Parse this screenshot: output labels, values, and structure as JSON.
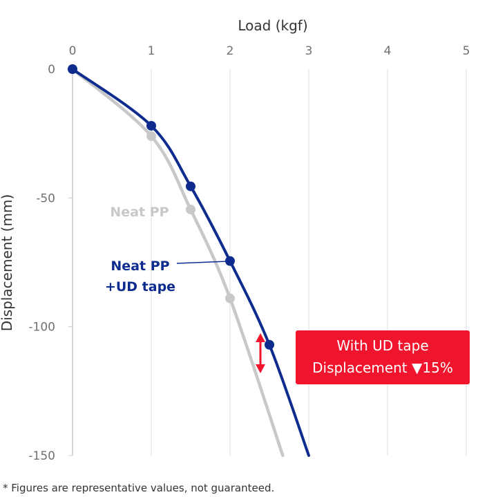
{
  "chart_data": {
    "type": "line",
    "title": "",
    "xlabel": "Load (kgf)",
    "ylabel": "Displacement (mm)",
    "xlim": [
      0,
      5
    ],
    "ylim": [
      -150,
      0
    ],
    "x_ticks": [
      "0",
      "1",
      "2",
      "3",
      "4",
      "5"
    ],
    "y_ticks": [
      "0",
      "-50",
      "-100",
      "-150"
    ],
    "grid": "vertical",
    "series": [
      {
        "name": "Neat PP",
        "color": "#c8c8c8",
        "points": [
          [
            0,
            0
          ],
          [
            1,
            -26
          ],
          [
            1.5,
            -54.5
          ],
          [
            2,
            -89
          ]
        ],
        "curve_end": [
          2.67,
          -150
        ]
      },
      {
        "name": "Neat PP\n+UD tape",
        "label_lines": [
          "Neat PP",
          "+UD tape"
        ],
        "color": "#0e2c8e",
        "points": [
          [
            0,
            0
          ],
          [
            1,
            -22
          ],
          [
            1.5,
            -45.5
          ],
          [
            2,
            -74.5
          ],
          [
            2.5,
            -107
          ]
        ],
        "curve_end": [
          3.0,
          -150
        ]
      }
    ],
    "annotation": {
      "lines": [
        "With UD tape",
        "Displacement ▼15%"
      ],
      "color": "#f0142d"
    },
    "footnote": "* Figures are representative values, not guaranteed."
  }
}
